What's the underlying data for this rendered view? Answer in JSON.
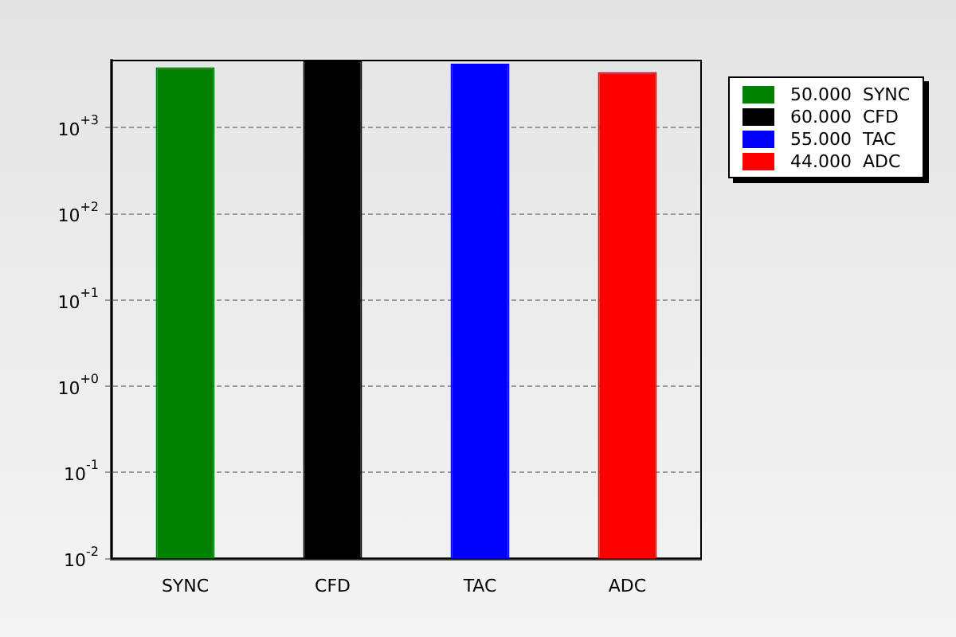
{
  "chart_data": {
    "type": "bar",
    "categories": [
      "SYNC",
      "CFD",
      "TAC",
      "ADC"
    ],
    "series": [
      {
        "name": "50.000  SYNC",
        "color": "#008000",
        "values": [
          5000,
          null,
          null,
          null
        ]
      },
      {
        "name": "60.000  CFD",
        "color": "#000000",
        "values": [
          null,
          6000,
          null,
          null
        ]
      },
      {
        "name": "55.000  TAC",
        "color": "#0000ff",
        "values": [
          null,
          null,
          5500,
          null
        ]
      },
      {
        "name": "44.000  ADC",
        "color": "#ff0000",
        "values": [
          null,
          null,
          null,
          4400
        ]
      }
    ],
    "log": "y",
    "ylim": [
      0.01,
      6000
    ],
    "yticks": [
      {
        "value": 0.01,
        "label": "10$^{-2}$"
      },
      {
        "value": 0.1,
        "label": "10$^{-1}$"
      },
      {
        "value": 1,
        "label": "10$^{+0}$"
      },
      {
        "value": 10,
        "label": "10$^{+1}$"
      },
      {
        "value": 100,
        "label": "10$^{+2}$"
      },
      {
        "value": 1000,
        "label": "10$^{+3}$"
      }
    ],
    "grid": "y",
    "legend": "right"
  }
}
